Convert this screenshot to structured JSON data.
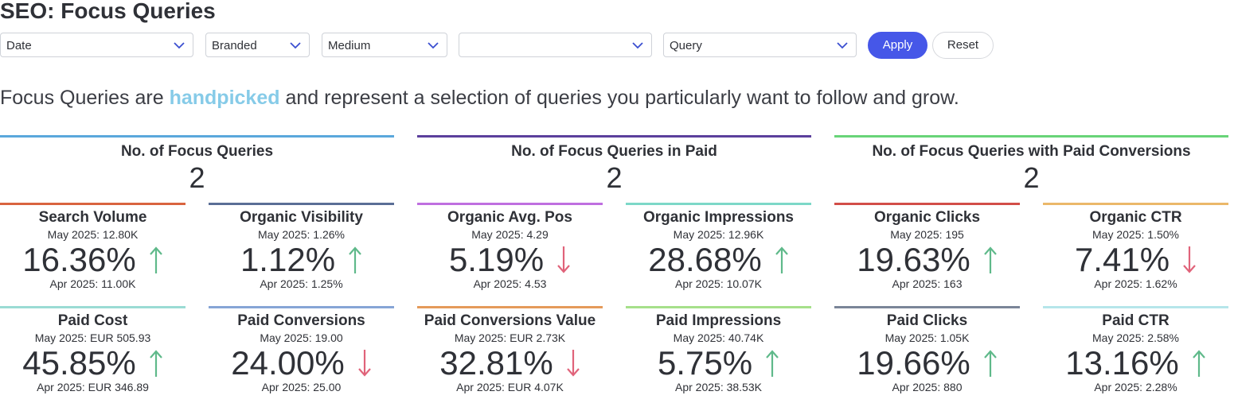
{
  "page": {
    "title": "SEO: Focus Queries"
  },
  "filters": [
    {
      "label": "Date"
    },
    {
      "label": "Branded"
    },
    {
      "label": "Medium"
    },
    {
      "label": ""
    },
    {
      "label": "Query"
    }
  ],
  "buttons": {
    "apply": "Apply",
    "reset": "Reset"
  },
  "intro": {
    "before": "Focus Queries are ",
    "highlight": "handpicked",
    "after": " and represent a selection of queries you particularly want to follow and grow."
  },
  "colors": {
    "apply_button": "#4657e8",
    "highlight": "#86cbe8",
    "arrow_up": "#5fb98a",
    "arrow_down": "#e0637a"
  },
  "summary": [
    {
      "title": "No. of Focus Queries",
      "value": "2",
      "color": "#5aa7dc"
    },
    {
      "title": "No. of Focus Queries in Paid",
      "value": "2",
      "color": "#5b3f9c"
    },
    {
      "title": "No. of Focus Queries with Paid Conversions",
      "value": "2",
      "color": "#68d478"
    }
  ],
  "metrics": [
    {
      "title": "Search Volume",
      "may": "May 2025: 12.80K",
      "pct": "16.36%",
      "dir": "up",
      "apr": "Apr 2025: 11.00K",
      "color": "#d9643f"
    },
    {
      "title": "Organic Visibility",
      "may": "May 2025: 1.26%",
      "pct": "1.12%",
      "dir": "up",
      "apr": "Apr 2025: 1.25%",
      "color": "#5a6e96"
    },
    {
      "title": "Organic Avg. Pos",
      "may": "May 2025: 4.29",
      "pct": "5.19%",
      "dir": "down",
      "apr": "Apr 2025: 4.53",
      "color": "#bf6fe0"
    },
    {
      "title": "Organic Impressions",
      "may": "May 2025: 12.96K",
      "pct": "28.68%",
      "dir": "up",
      "apr": "Apr 2025: 10.07K",
      "color": "#7dd8c8"
    },
    {
      "title": "Organic Clicks",
      "may": "May 2025: 195",
      "pct": "19.63%",
      "dir": "up",
      "apr": "Apr 2025: 163",
      "color": "#d24e48"
    },
    {
      "title": "Organic CTR",
      "may": "May 2025: 1.50%",
      "pct": "7.41%",
      "dir": "down",
      "apr": "Apr 2025: 1.62%",
      "color": "#ebb86a"
    },
    {
      "title": "Paid Cost",
      "may": "May 2025: EUR 505.93",
      "pct": "45.85%",
      "dir": "up",
      "apr": "Apr 2025: EUR 346.89",
      "color": "#9adbd4"
    },
    {
      "title": "Paid Conversions",
      "may": "May 2025: 19.00",
      "pct": "24.00%",
      "dir": "down",
      "apr": "Apr 2025: 25.00",
      "color": "#86a5d6"
    },
    {
      "title": "Paid Conversions Value",
      "may": "May 2025: EUR 2.73K",
      "pct": "32.81%",
      "dir": "down",
      "apr": "Apr 2025: EUR 4.07K",
      "color": "#e59a5a"
    },
    {
      "title": "Paid Impressions",
      "may": "May 2025: 40.74K",
      "pct": "5.75%",
      "dir": "up",
      "apr": "Apr 2025: 38.53K",
      "color": "#a6e08a"
    },
    {
      "title": "Paid Clicks",
      "may": "May 2025: 1.05K",
      "pct": "19.66%",
      "dir": "up",
      "apr": "Apr 2025: 880",
      "color": "#7a8598"
    },
    {
      "title": "Paid CTR",
      "may": "May 2025: 2.58%",
      "pct": "13.16%",
      "dir": "up",
      "apr": "Apr 2025: 2.28%",
      "color": "#b6e6ea"
    }
  ]
}
